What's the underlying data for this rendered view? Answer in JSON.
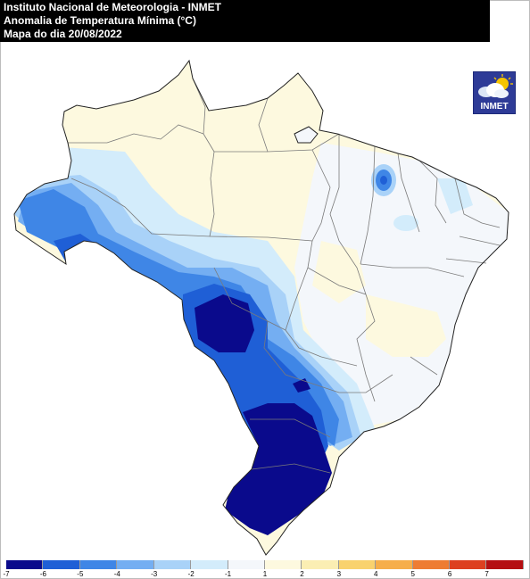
{
  "header": {
    "line1": "Instituto Nacional de Meteorologia - INMET",
    "line2": "Anomalia de Temperatura Mínima (°C)",
    "line3": "Mapa do dia 20/08/2022"
  },
  "logo": {
    "text": "INMET",
    "icon": "cloud-sun-icon"
  },
  "legend": {
    "ticks": [
      "-7",
      "-6",
      "-5",
      "-4",
      "-3",
      "-2",
      "-1",
      "1",
      "2",
      "3",
      "4",
      "5",
      "6",
      "7"
    ],
    "colors": [
      "#0a0a8c",
      "#1f5fd6",
      "#3f86e6",
      "#74aef2",
      "#a9d2f8",
      "#d3ecfb",
      "#f4f7fb",
      "#fdf9df",
      "#fbeeb3",
      "#f9d26e",
      "#f6ae4a",
      "#ee7c33",
      "#dd4020",
      "#b50f12"
    ]
  }
}
